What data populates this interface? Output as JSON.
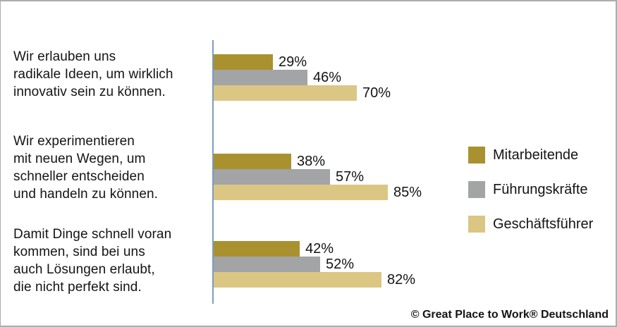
{
  "chart_data": {
    "type": "bar",
    "orientation": "horizontal",
    "title": "",
    "categories": [
      [
        "Wir erlauben uns",
        "radikale Ideen, um wirklich",
        "innovativ sein zu können."
      ],
      [
        "Wir experimentieren",
        "mit neuen Wegen, um",
        "schneller entscheiden",
        "und handeln zu können."
      ],
      [
        "Damit Dinge schnell voran",
        "kommen, sind bei uns",
        "auch Lösungen erlaubt,",
        "die nicht perfekt sind."
      ]
    ],
    "series": [
      {
        "name": "Mitarbeitende",
        "color": "#aa9130",
        "values": [
          29,
          38,
          42
        ]
      },
      {
        "name": "Führungskräfte",
        "color": "#a2a4a6",
        "values": [
          46,
          57,
          52
        ]
      },
      {
        "name": "Geschäftsführer",
        "color": "#dbc684",
        "values": [
          70,
          85,
          82
        ]
      }
    ],
    "value_suffix": "%",
    "xlim": [
      0,
      100
    ],
    "grid": false,
    "legend_position": "right"
  },
  "footer": {
    "copyright": "© Great Place to Work® Deutschland"
  },
  "colors": {
    "axis_line": "#7b9ebd",
    "frame_border": "#acacac",
    "text": "#141414"
  }
}
